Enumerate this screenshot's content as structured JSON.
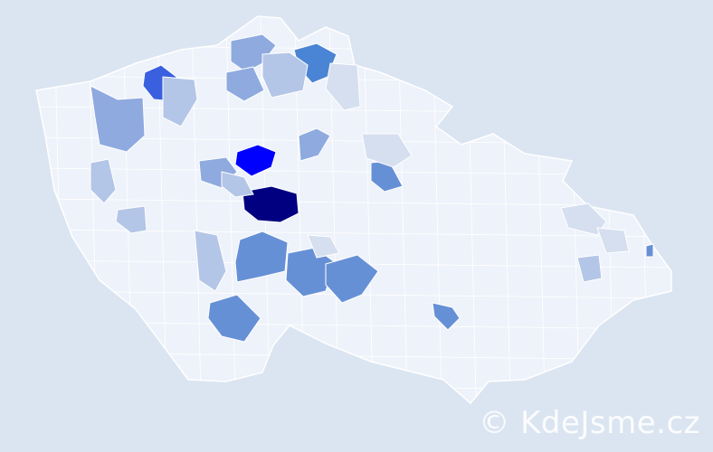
{
  "map": {
    "base_fill": "#eef2fa",
    "border_color": "#ffffff",
    "background": "#dbe5f1",
    "scale_colors": [
      "#d6dff0",
      "#b4c6e7",
      "#8eaadf",
      "#6690d6",
      "#4a84d4",
      "#3a60e0",
      "#0000ff",
      "#000080"
    ]
  },
  "watermark": {
    "text": "© KdeJsme.cz"
  }
}
